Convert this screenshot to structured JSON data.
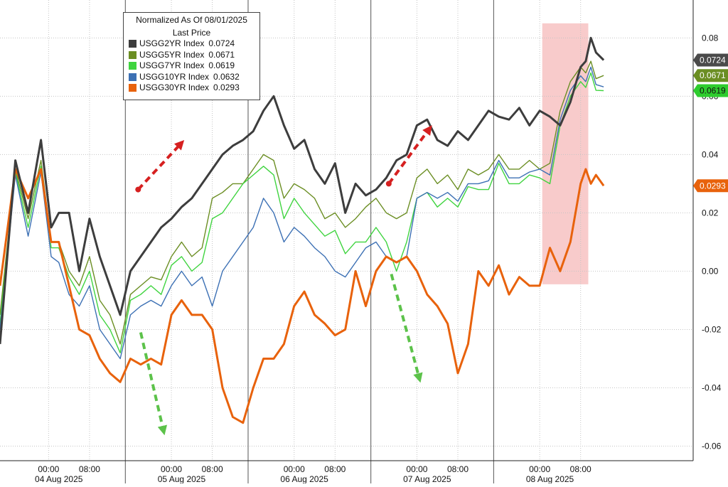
{
  "legend": {
    "title_line1": "Normalized As Of 08/01/2025",
    "title_line2": "Last Price",
    "items": [
      {
        "label": "USGG2YR Index",
        "value": "0.0724",
        "color": "#3d3d3d"
      },
      {
        "label": "USGG5YR Index",
        "value": "0.0671",
        "color": "#6b8e23"
      },
      {
        "label": "USGG7YR Index",
        "value": "0.0619",
        "color": "#3fd43f"
      },
      {
        "label": "USGG10YR Index",
        "value": "0.0632",
        "color": "#3c70b4"
      },
      {
        "label": "USGG30YR Index",
        "value": "0.0293",
        "color": "#e8620c"
      }
    ]
  },
  "last_price_tags": [
    {
      "text": "0.0724",
      "y": 0.0724,
      "bg": "#4a4a4a",
      "fg": "#ffffff"
    },
    {
      "text": "0.0671",
      "y": 0.0671,
      "bg": "#6b8e23",
      "fg": "#ffffff"
    },
    {
      "text": "0.0619",
      "y": 0.0619,
      "bg": "#2ecc2e",
      "fg": "#111111"
    },
    {
      "text": "0.0293",
      "y": 0.0293,
      "bg": "#e8620c",
      "fg": "#ffffff"
    }
  ],
  "chart_data": {
    "type": "line",
    "title": "",
    "y_axis_side": "right",
    "ylim": [
      -0.065,
      0.093
    ],
    "y_ticks": [
      0.08,
      0.06,
      0.04,
      0.02,
      0.0,
      -0.02,
      -0.04,
      -0.06
    ],
    "y_tick_labels": [
      "0.08",
      "0.06",
      "0.04",
      "0.02",
      "0.00",
      "-0.02",
      "-0.04",
      "-0.06"
    ],
    "x_unit": "hours since 2025-08-04 00:00",
    "xlim": [
      -9.5,
      126
    ],
    "x_tick_labels": [
      {
        "x": 0,
        "label": "00:00"
      },
      {
        "x": 8,
        "label": "08:00"
      },
      {
        "x": 24,
        "label": "00:00"
      },
      {
        "x": 32,
        "label": "08:00"
      },
      {
        "x": 48,
        "label": "00:00"
      },
      {
        "x": 56,
        "label": "08:00"
      },
      {
        "x": 72,
        "label": "00:00"
      },
      {
        "x": 80,
        "label": "08:00"
      },
      {
        "x": 96,
        "label": "00:00"
      },
      {
        "x": 104,
        "label": "08:00"
      }
    ],
    "date_labels": [
      {
        "x": 2,
        "label": "04 Aug 2025"
      },
      {
        "x": 26,
        "label": "05 Aug 2025"
      },
      {
        "x": 50,
        "label": "06 Aug 2025"
      },
      {
        "x": 74,
        "label": "07 Aug 2025"
      },
      {
        "x": 98,
        "label": "08 Aug 2025"
      }
    ],
    "day_separators": [
      15,
      39,
      63,
      87
    ],
    "grid": true,
    "legend_position": "top-left",
    "x": [
      -9.5,
      -6.5,
      -4,
      -1.5,
      0.5,
      2,
      4,
      6,
      8,
      10,
      12,
      14,
      16,
      18,
      20,
      22,
      24,
      26,
      28,
      30,
      32,
      34,
      36,
      38,
      40,
      42,
      44,
      46,
      48,
      50,
      52,
      54,
      56,
      58,
      60,
      62,
      64,
      66,
      68,
      70,
      72,
      74,
      76,
      78,
      80,
      82,
      84,
      86,
      88,
      90,
      92,
      94,
      96,
      98,
      100,
      102,
      104,
      105,
      106,
      107,
      108.5
    ],
    "series": [
      {
        "name": "USGG2YR Index",
        "color": "#3d3d3d",
        "width": 3,
        "values": [
          -0.025,
          0.038,
          0.02,
          0.045,
          0.015,
          0.02,
          0.02,
          0.0,
          0.018,
          0.005,
          -0.005,
          -0.015,
          0.0,
          0.005,
          0.01,
          0.015,
          0.018,
          0.022,
          0.025,
          0.03,
          0.035,
          0.04,
          0.043,
          0.045,
          0.048,
          0.055,
          0.06,
          0.05,
          0.042,
          0.045,
          0.035,
          0.03,
          0.037,
          0.02,
          0.03,
          0.026,
          0.028,
          0.032,
          0.038,
          0.04,
          0.05,
          0.052,
          0.045,
          0.043,
          0.048,
          0.045,
          0.05,
          0.055,
          0.053,
          0.052,
          0.056,
          0.05,
          0.055,
          0.053,
          0.05,
          0.058,
          0.07,
          0.072,
          0.08,
          0.075,
          0.0724
        ]
      },
      {
        "name": "USGG5YR Index",
        "color": "#6b8e23",
        "width": 1.4,
        "values": [
          -0.015,
          0.035,
          0.018,
          0.038,
          0.01,
          0.01,
          0.0,
          -0.005,
          0.005,
          -0.01,
          -0.015,
          -0.025,
          -0.008,
          -0.005,
          -0.002,
          -0.003,
          0.005,
          0.01,
          0.005,
          0.008,
          0.025,
          0.027,
          0.03,
          0.03,
          0.035,
          0.04,
          0.038,
          0.025,
          0.03,
          0.028,
          0.025,
          0.018,
          0.02,
          0.015,
          0.018,
          0.022,
          0.025,
          0.02,
          0.018,
          0.02,
          0.032,
          0.035,
          0.03,
          0.033,
          0.028,
          0.035,
          0.033,
          0.035,
          0.04,
          0.035,
          0.035,
          0.038,
          0.035,
          0.037,
          0.055,
          0.065,
          0.07,
          0.068,
          0.072,
          0.066,
          0.0671
        ]
      },
      {
        "name": "USGG7YR Index",
        "color": "#3fd43f",
        "width": 1.4,
        "values": [
          -0.018,
          0.034,
          0.015,
          0.036,
          0.008,
          0.008,
          -0.002,
          -0.008,
          0.0,
          -0.015,
          -0.02,
          -0.028,
          -0.01,
          -0.008,
          -0.005,
          -0.008,
          0.002,
          0.005,
          0.0,
          0.003,
          0.018,
          0.02,
          0.025,
          0.03,
          0.033,
          0.036,
          0.033,
          0.018,
          0.025,
          0.02,
          0.016,
          0.012,
          0.014,
          0.006,
          0.01,
          0.01,
          0.015,
          0.01,
          0.0,
          0.01,
          0.025,
          0.027,
          0.022,
          0.025,
          0.022,
          0.029,
          0.028,
          0.028,
          0.037,
          0.03,
          0.03,
          0.033,
          0.032,
          0.03,
          0.05,
          0.06,
          0.065,
          0.063,
          0.068,
          0.062,
          0.0619
        ]
      },
      {
        "name": "USGG10YR Index",
        "color": "#3c70b4",
        "width": 1.4,
        "values": [
          -0.02,
          0.033,
          0.012,
          0.034,
          0.005,
          0.003,
          -0.008,
          -0.012,
          -0.005,
          -0.02,
          -0.025,
          -0.03,
          -0.015,
          -0.012,
          -0.01,
          -0.012,
          -0.005,
          0.0,
          -0.005,
          -0.002,
          -0.012,
          0.0,
          0.005,
          0.01,
          0.015,
          0.025,
          0.02,
          0.01,
          0.015,
          0.012,
          0.008,
          0.005,
          0.0,
          -0.002,
          0.003,
          0.008,
          0.01,
          0.005,
          0.003,
          0.005,
          0.025,
          0.027,
          0.025,
          0.027,
          0.024,
          0.03,
          0.03,
          0.031,
          0.038,
          0.032,
          0.032,
          0.034,
          0.035,
          0.033,
          0.052,
          0.062,
          0.067,
          0.065,
          0.07,
          0.064,
          0.0632
        ]
      },
      {
        "name": "USGG30YR Index",
        "color": "#e8620c",
        "width": 3,
        "values": [
          -0.005,
          0.035,
          0.025,
          0.035,
          0.01,
          0.01,
          -0.005,
          -0.02,
          -0.022,
          -0.03,
          -0.035,
          -0.038,
          -0.03,
          -0.032,
          -0.03,
          -0.032,
          -0.015,
          -0.01,
          -0.015,
          -0.015,
          -0.02,
          -0.04,
          -0.05,
          -0.052,
          -0.04,
          -0.03,
          -0.03,
          -0.025,
          -0.012,
          -0.007,
          -0.015,
          -0.018,
          -0.022,
          -0.02,
          0.0,
          -0.012,
          0.0,
          0.005,
          0.003,
          0.005,
          0.0,
          -0.008,
          -0.012,
          -0.018,
          -0.035,
          -0.025,
          0.0,
          -0.005,
          0.002,
          -0.008,
          -0.002,
          -0.005,
          -0.005,
          0.008,
          0.0,
          0.01,
          0.03,
          0.035,
          0.03,
          0.033,
          0.0293
        ]
      }
    ],
    "annotations": [
      {
        "kind": "highlight",
        "x_start": 96.5,
        "x_end": 105.5,
        "y_start": -0.0045,
        "y_end": 0.085,
        "color": "#f4a9a9"
      },
      {
        "kind": "arrow",
        "color": "#d62020",
        "x1": 17.5,
        "y1": 0.028,
        "x2": 26,
        "y2": 0.044
      },
      {
        "kind": "arrow",
        "color": "#d62020",
        "x1": 66.5,
        "y1": 0.03,
        "x2": 74.5,
        "y2": 0.049
      },
      {
        "kind": "arrow",
        "color": "#5cc24a",
        "x1": 18,
        "y1": -0.021,
        "x2": 22.5,
        "y2": -0.055
      },
      {
        "kind": "arrow",
        "color": "#5cc24a",
        "x1": 67,
        "y1": -0.001,
        "x2": 72.5,
        "y2": -0.037
      }
    ]
  }
}
